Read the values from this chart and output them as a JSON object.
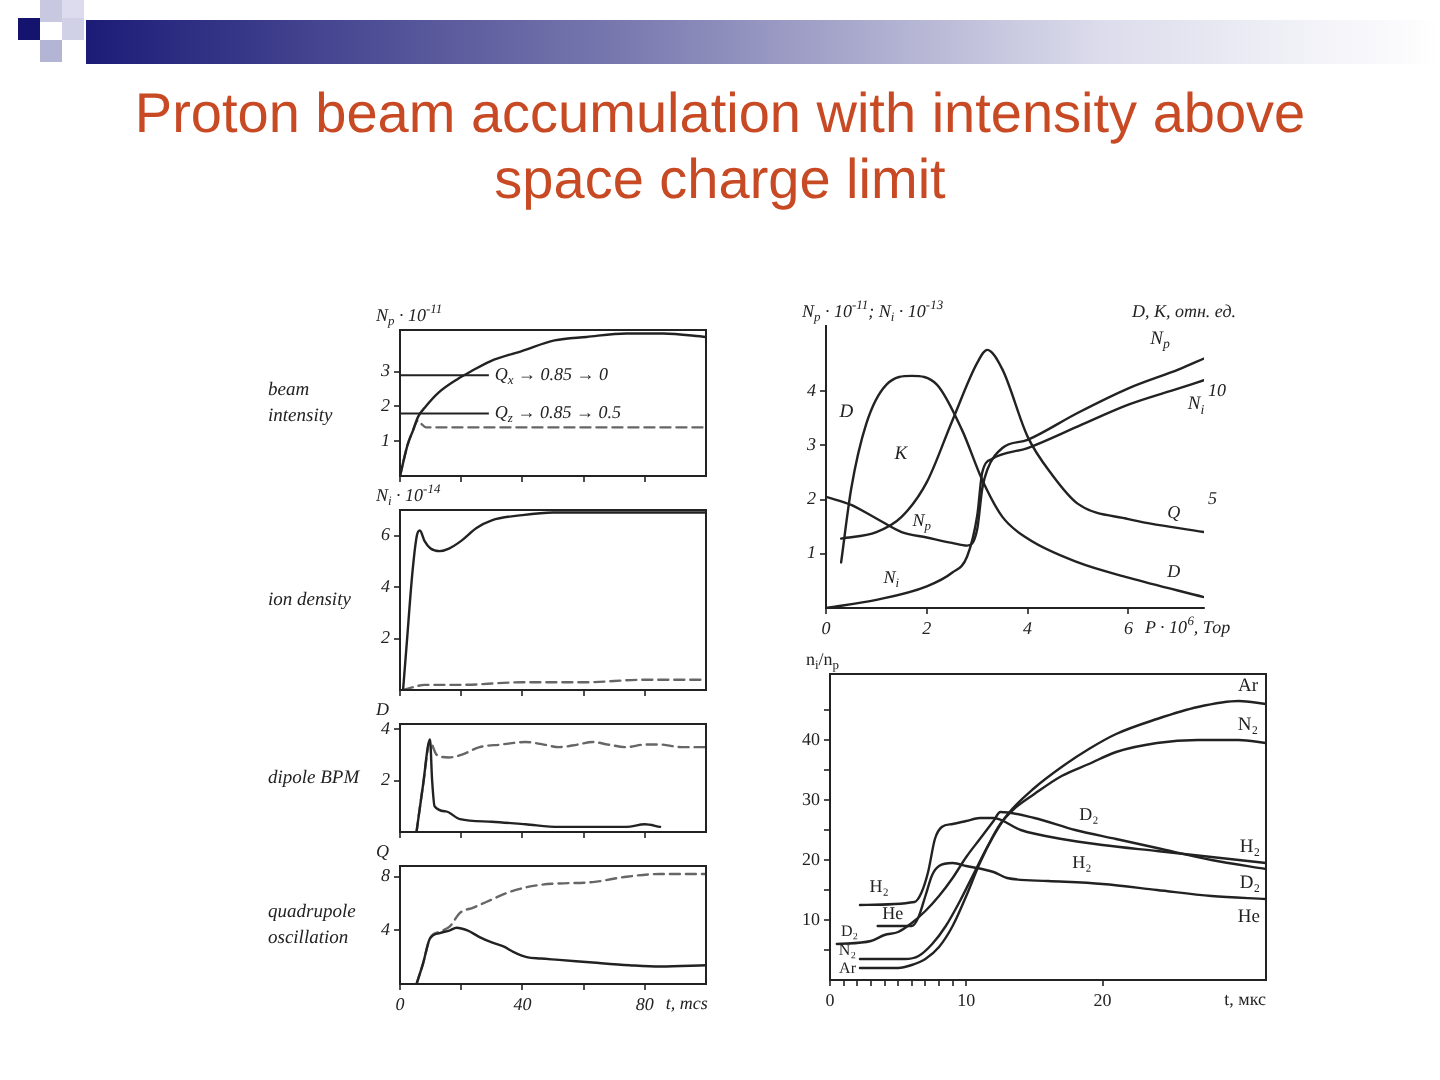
{
  "chart_data": [
    {
      "type": "line",
      "title": "Proton beam accumulation with intensity above space charge limit",
      "ylabel": "N$_{p}$ · 10$^{-11}$",
      "annotations": [
        "beam intensity"
      ],
      "xlim": [
        0,
        100
      ],
      "ylim": [
        0,
        4.2
      ],
      "xticks": [
        0,
        {
          "value": 20,
          "label": null
        },
        40,
        {
          "value": 60,
          "label": null
        },
        80
      ],
      "yticks": [
        1,
        2,
        3
      ],
      "tick_labels": "y",
      "ref_lines": [
        {
          "axis": "y",
          "value": 2.9,
          "label": "Q$_{x}$ → 0.85 → 0"
        },
        {
          "axis": "y",
          "value": 1.8,
          "label": "Q$_{z}$ → 0.85 → 0.5"
        }
      ],
      "series": [
        {
          "color": "#222222",
          "x": [
            0,
            2.5,
            4.2,
            5.9,
            8.4,
            12.6,
            19,
            23,
            29.5,
            40,
            50.5,
            61,
            74,
            86,
            100
          ],
          "values": [
            0,
            0.9,
            1.3,
            1.7,
            2.0,
            2.4,
            2.8,
            3.0,
            3.3,
            3.6,
            3.9,
            4.0,
            4.1,
            4.1,
            4.0
          ]
        },
        {
          "color": "#666666",
          "line_style": "dashed",
          "x": [
            0,
            2.5,
            4.2,
            5.9,
            7,
            8.5,
            12,
            30,
            50,
            70,
            100
          ],
          "values": [
            0,
            0.9,
            1.3,
            1.6,
            1.5,
            1.4,
            1.4,
            1.4,
            1.4,
            1.4,
            1.4
          ]
        }
      ]
    },
    {
      "type": "line",
      "ylabel": "N$_{i}$ · 10$^{-14}$",
      "annotations": [
        "ion density"
      ],
      "xlim": [
        0,
        100
      ],
      "ylim": [
        0,
        7
      ],
      "xticks": [
        0,
        {
          "value": 20,
          "label": null
        },
        40,
        {
          "value": 60,
          "label": null
        },
        80
      ],
      "yticks": [
        2,
        4,
        6
      ],
      "tick_labels": "y",
      "series": [
        {
          "color": "#222222",
          "x": [
            1,
            2.2,
            4,
            5.5,
            6.5,
            8,
            10,
            13,
            16,
            20,
            25,
            30,
            40,
            50,
            60,
            80,
            100
          ],
          "values": [
            0,
            1.8,
            4.5,
            6.0,
            6.2,
            5.8,
            5.5,
            5.4,
            5.5,
            5.8,
            6.3,
            6.6,
            6.8,
            6.9,
            6.9,
            6.9,
            6.9
          ]
        },
        {
          "color": "#666666",
          "line_style": "dashed",
          "x": [
            1,
            4,
            8,
            20,
            40,
            60,
            80,
            100
          ],
          "values": [
            0,
            0.1,
            0.2,
            0.2,
            0.3,
            0.3,
            0.4,
            0.4
          ]
        }
      ]
    },
    {
      "type": "line",
      "ylabel": "D",
      "annotations": [
        "dipole BPM"
      ],
      "xlim": [
        0,
        100
      ],
      "ylim": [
        0,
        4.2
      ],
      "xticks": [
        0,
        {
          "value": 20,
          "label": null
        },
        40,
        {
          "value": 60,
          "label": null
        },
        80
      ],
      "yticks": [
        2,
        4
      ],
      "tick_labels": "y",
      "series": [
        {
          "color": "#222222",
          "x": [
            5.4,
            7.5,
            9.8,
            10.5,
            11.3,
            15,
            19.6,
            30,
            41,
            52,
            63,
            74,
            80,
            85
          ],
          "values": [
            0,
            1.8,
            3.6,
            2.0,
            1.0,
            0.8,
            0.5,
            0.4,
            0.3,
            0.2,
            0.2,
            0.2,
            0.3,
            0.2
          ]
        },
        {
          "color": "#666666",
          "line_style": "dashed",
          "x": [
            5.4,
            7.5,
            9.8,
            12,
            16,
            20,
            26,
            33,
            41,
            47,
            52,
            58,
            63,
            68,
            74,
            80,
            85,
            92,
            100
          ],
          "values": [
            0,
            1.8,
            3.5,
            3.0,
            2.9,
            3.0,
            3.3,
            3.4,
            3.5,
            3.4,
            3.3,
            3.4,
            3.5,
            3.4,
            3.3,
            3.4,
            3.4,
            3.3,
            3.3
          ]
        }
      ]
    },
    {
      "type": "line",
      "ylabel": "Q",
      "xlabel": "t, mcs",
      "annotations": [
        "quadrupole oscillation"
      ],
      "xlim": [
        0,
        100
      ],
      "ylim": [
        0,
        8.8
      ],
      "xticks": [
        0,
        {
          "value": 20,
          "label": null
        },
        40,
        {
          "value": 60,
          "label": null
        },
        80
      ],
      "yticks": [
        4,
        8
      ],
      "series": [
        {
          "color": "#222222",
          "x": [
            5.4,
            7.5,
            9.8,
            13,
            16.3,
            18.5,
            22,
            26,
            30,
            33.8,
            37,
            41.4,
            46,
            52,
            63,
            75,
            85,
            100
          ],
          "values": [
            0,
            1.5,
            3.4,
            3.8,
            4.0,
            4.2,
            4.0,
            3.5,
            3.1,
            2.8,
            2.4,
            2.0,
            1.9,
            1.8,
            1.6,
            1.4,
            1.3,
            1.4
          ]
        },
        {
          "color": "#666666",
          "line_style": "dashed",
          "x": [
            5.4,
            7.5,
            9.8,
            13,
            16.3,
            19.6,
            24,
            30,
            35,
            41,
            46,
            52,
            63,
            74,
            85,
            100
          ],
          "values": [
            0,
            1.5,
            3.4,
            3.9,
            4.3,
            5.3,
            5.7,
            6.3,
            6.8,
            7.2,
            7.4,
            7.5,
            7.6,
            8.0,
            8.2,
            8.2
          ]
        }
      ]
    },
    {
      "type": "line",
      "xlabel": "P · 10$^{6}$, Тор",
      "ylabel": "N$_{p}$ · 10$^{-11}$; N$_{i}$ · 10$^{-13}$",
      "y2label": "D, K, отн. ед.",
      "xlim": [
        0,
        7.5
      ],
      "ylim": [
        0,
        5.2
      ],
      "y2lim": [
        0,
        13
      ],
      "xticks": [
        0,
        2,
        4,
        6
      ],
      "yticks": [
        1,
        2,
        3,
        4
      ],
      "y2ticks": [
        5,
        10
      ],
      "annotations": [
        "N$_{p}$",
        "N$_{i}$",
        "Q",
        "D"
      ],
      "series": [
        {
          "name": "N$_{p}$",
          "color": "#222222",
          "x": [
            0,
            0.5,
            1,
            1.5,
            2,
            2.5,
            2.8,
            3.0,
            3.1,
            3.2,
            3.5,
            4,
            5,
            6,
            7,
            7.5
          ],
          "values": [
            2.05,
            1.9,
            1.65,
            1.4,
            1.3,
            1.2,
            1.15,
            1.45,
            2.2,
            2.55,
            2.95,
            3.1,
            3.6,
            4.05,
            4.4,
            4.6
          ]
        },
        {
          "name": "N$_{i}$",
          "color": "#222222",
          "x": [
            0,
            1,
            2,
            2.5,
            2.8,
            3.0,
            3.1,
            3.3,
            4,
            5,
            6,
            7,
            7.5
          ],
          "values": [
            0,
            0.15,
            0.4,
            0.65,
            0.95,
            1.7,
            2.5,
            2.75,
            2.95,
            3.35,
            3.75,
            4.05,
            4.2
          ]
        },
        {
          "name": "D",
          "color": "#222222",
          "axis": "y2",
          "x": [
            0.3,
            0.5,
            0.8,
            1.2,
            1.7,
            2.2,
            2.7,
            3.1,
            3.5,
            4,
            5,
            6,
            7.5
          ],
          "values": [
            2.1,
            5.5,
            8.5,
            10.3,
            10.7,
            10.3,
            8.2,
            5.9,
            4.2,
            3.2,
            2.1,
            1.4,
            0.5
          ]
        },
        {
          "name": "K",
          "color": "#222222",
          "axis": "y2",
          "x": [
            0.3,
            1,
            1.5,
            2,
            2.5,
            3,
            3.2,
            3.5,
            4,
            4.5,
            5,
            6,
            7.5
          ],
          "values": [
            3.2,
            3.5,
            4.2,
            5.8,
            8.6,
            11.3,
            11.9,
            11.0,
            7.9,
            6.1,
            4.8,
            4.1,
            3.5
          ]
        }
      ]
    },
    {
      "type": "line",
      "xlabel": "t, мкс",
      "ylabel": "n$_{i}$/n$_{p}$",
      "xlim": [
        0,
        32
      ],
      "ylim": [
        0,
        51
      ],
      "xticks": [
        0,
        {
          "value": 1,
          "label": null
        },
        {
          "value": 2,
          "label": null
        },
        {
          "value": 3,
          "label": null
        },
        {
          "value": 4,
          "label": null
        },
        {
          "value": 5,
          "label": null
        },
        {
          "value": 6,
          "label": null
        },
        {
          "value": 7,
          "label": null
        },
        {
          "value": 8,
          "label": null
        },
        {
          "value": 9,
          "label": null
        },
        10,
        20
      ],
      "yticks": [
        {
          "value": 5,
          "label": null
        },
        10,
        {
          "value": 15,
          "label": null
        },
        20,
        {
          "value": 25,
          "label": null
        },
        30,
        {
          "value": 35,
          "label": null
        },
        40,
        {
          "value": 45,
          "label": null
        }
      ],
      "annotations": [
        "H₂",
        "He",
        "D₂",
        "N₂",
        "Ar",
        "D₂",
        "H₂"
      ],
      "series": [
        {
          "name": "Ar",
          "color": "#222222",
          "x": [
            2.2,
            5,
            6,
            7,
            8,
            9,
            10,
            11,
            12,
            13,
            15,
            17,
            19,
            21,
            24,
            27,
            30,
            32
          ],
          "values": [
            2,
            2,
            2.5,
            3.5,
            5.5,
            9,
            14,
            19.5,
            24,
            27.5,
            32,
            35.5,
            38.5,
            41,
            43.5,
            45.5,
            46.5,
            46
          ]
        },
        {
          "name": "N₂",
          "color": "#222222",
          "x": [
            2.2,
            5.5,
            6.5,
            7.5,
            8.5,
            9.5,
            10.5,
            11.5,
            12.5,
            13.5,
            15,
            17,
            19,
            21,
            24,
            27,
            30,
            32
          ],
          "values": [
            3.5,
            3.5,
            4,
            6,
            9,
            13,
            17.5,
            22,
            26,
            28.5,
            31,
            34,
            36,
            38,
            39.5,
            40,
            40,
            39.5
          ]
        },
        {
          "name": "H₂",
          "color": "#222222",
          "x": [
            2.2,
            6.2,
            6.7,
            7.2,
            7.7,
            8.2,
            9,
            10,
            11,
            12,
            14,
            17,
            20,
            24,
            28,
            32
          ],
          "values": [
            12.5,
            13,
            14.5,
            18,
            23.5,
            25.5,
            26,
            26.5,
            27,
            27,
            25,
            23.5,
            22.5,
            21.5,
            20.5,
            19.5
          ]
        },
        {
          "name": "D₂",
          "color": "#222222",
          "x": [
            0.5,
            3,
            4,
            5,
            6,
            7,
            8,
            9,
            10,
            11,
            12,
            12.5,
            15,
            18,
            21,
            24,
            28,
            32
          ],
          "values": [
            6,
            6.5,
            7.5,
            8,
            9.5,
            11.5,
            14,
            17,
            20.5,
            23.5,
            26.5,
            28,
            27,
            25,
            23.5,
            22,
            20,
            18.5
          ]
        },
        {
          "name": "He",
          "color": "#222222",
          "x": [
            3.5,
            6,
            6.5,
            7,
            7.5,
            8,
            9,
            10,
            12,
            13,
            16,
            20,
            24,
            28,
            32
          ],
          "values": [
            9,
            9,
            10.5,
            14,
            17.5,
            19,
            19.5,
            19,
            18,
            17,
            16.5,
            16,
            15,
            14,
            13.5
          ]
        }
      ]
    }
  ]
}
